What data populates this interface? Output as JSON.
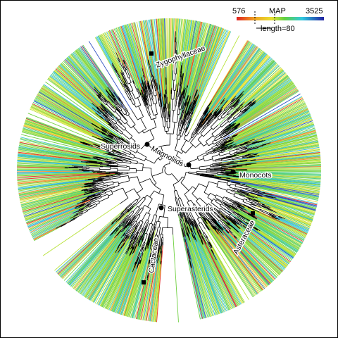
{
  "legend": {
    "min": 576,
    "label": "MAP",
    "max": 3525,
    "scale": "length=80"
  },
  "clades": [
    "Zygophyllaceae",
    "Superrosids",
    "Magnoliids",
    "Monocots",
    "Superasterids",
    "Asteraceae",
    "Cactaceae"
  ]
}
